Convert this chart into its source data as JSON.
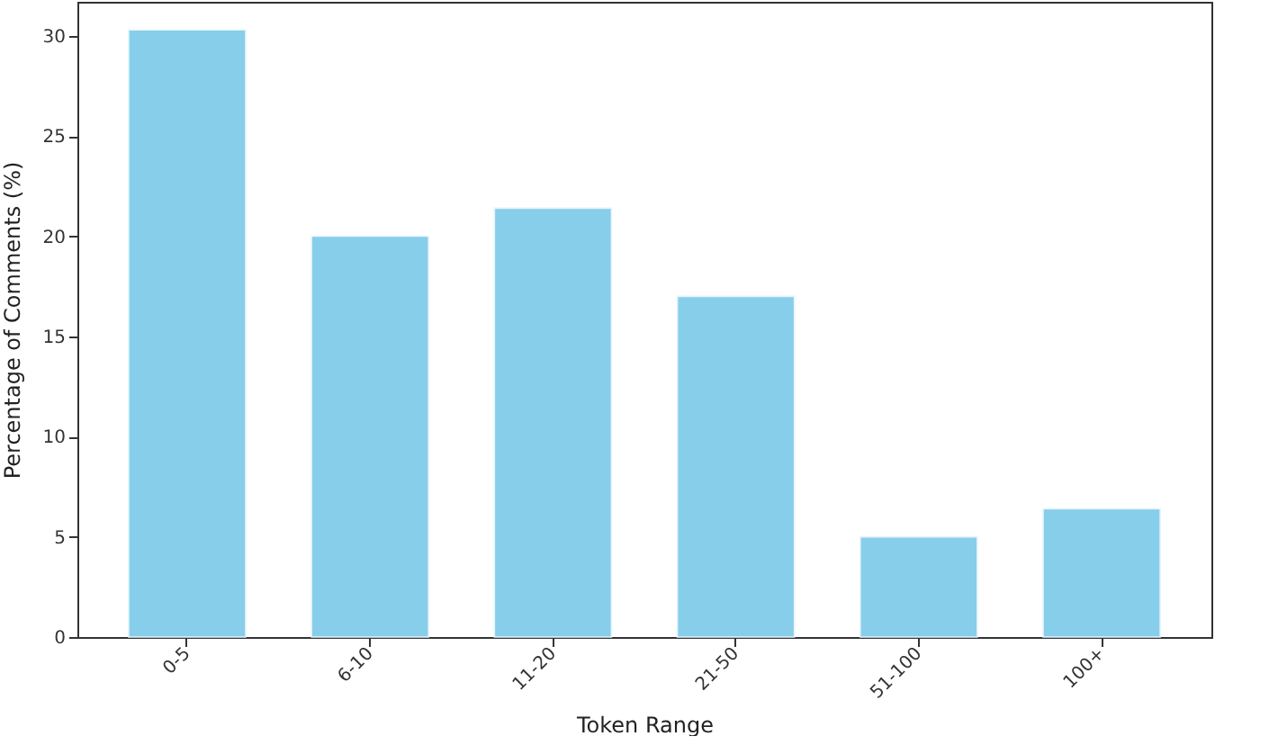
{
  "chart_data": {
    "type": "bar",
    "xlabel": "Token Range",
    "ylabel": "Percentage of Comments (%)",
    "categories": [
      "0-5",
      "6-10",
      "11-20",
      "21-50",
      "51-100",
      "100+"
    ],
    "values": [
      30.3,
      20.0,
      21.4,
      17.0,
      5.0,
      6.4
    ],
    "color": "#87ceeb",
    "ylim": [
      0,
      31.7
    ],
    "yticks": [
      0,
      5,
      10,
      15,
      20,
      25,
      30
    ],
    "grid": false
  }
}
